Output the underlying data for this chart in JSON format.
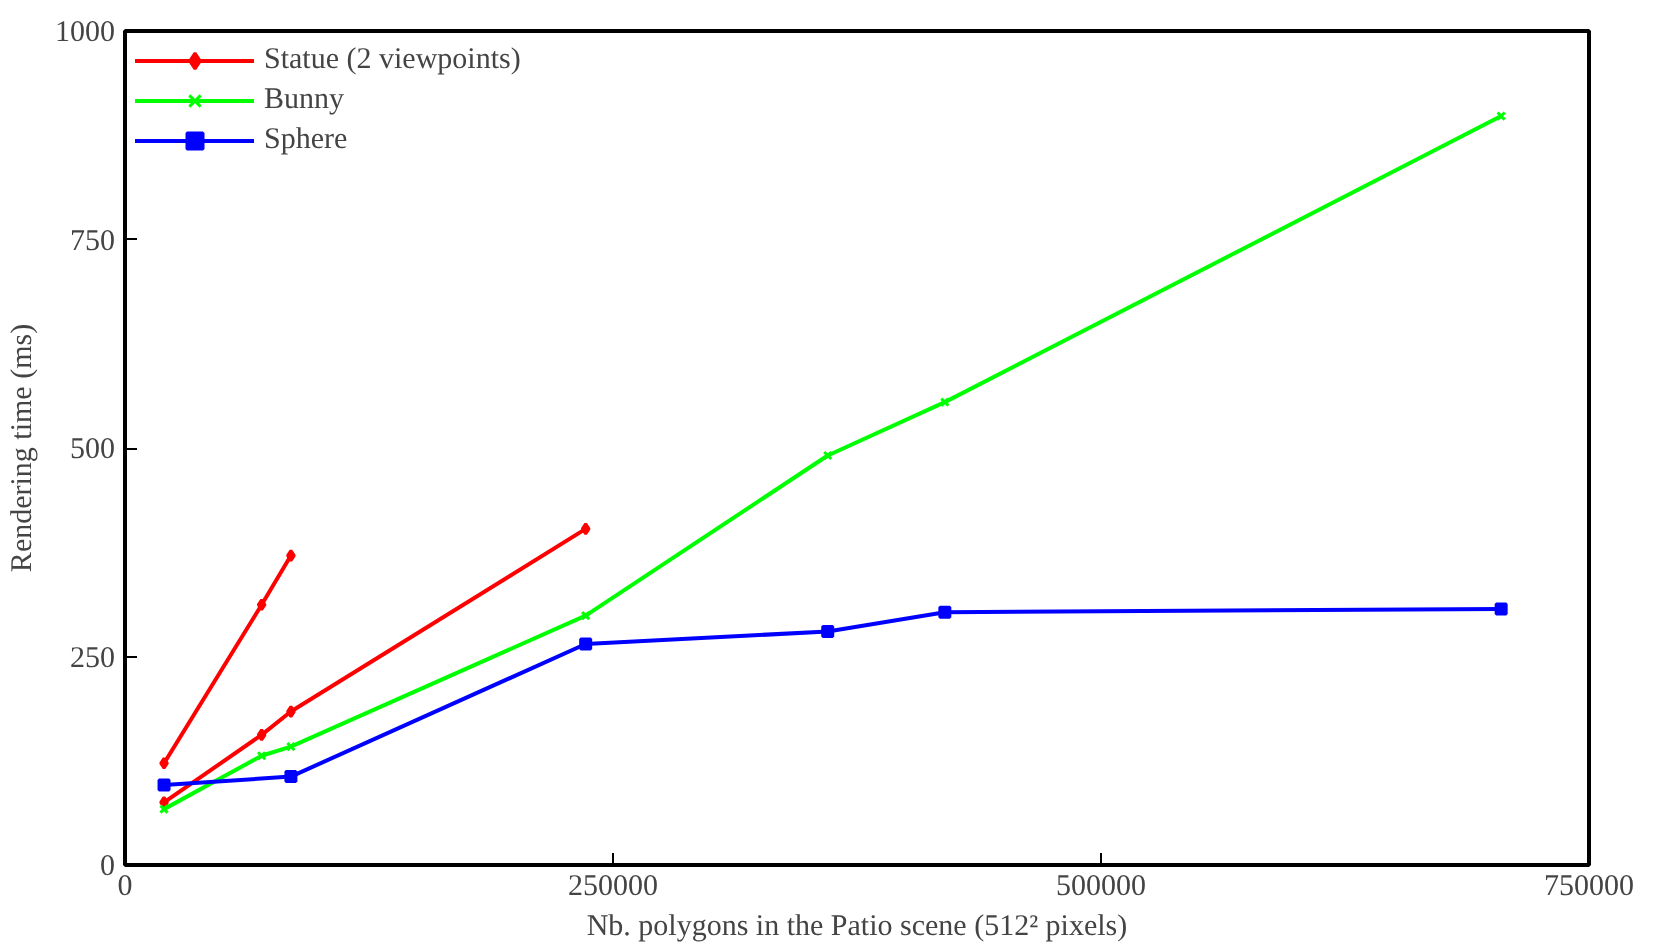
{
  "chart_data": {
    "type": "line",
    "xlabel": "Nb. polygons in the Patio scene (512² pixels)",
    "ylabel": "Rendering time (ms)",
    "xlim": [
      0,
      750000
    ],
    "ylim": [
      0,
      1000
    ],
    "xticks": [
      0,
      250000,
      500000,
      750000
    ],
    "yticks": [
      0,
      250,
      500,
      750,
      1000
    ],
    "grid": false,
    "legend": "top left",
    "series": [
      {
        "name": "Statue (2 viewpoints)",
        "color": "#ff0000",
        "marker": "diamond",
        "x": [
          20000,
          70000,
          85000
        ],
        "values": [
          122,
          312,
          371
        ]
      },
      {
        "color": "#ff0000",
        "marker": "diamond",
        "x": [
          20000,
          70000,
          85000,
          236000
        ],
        "values": [
          75,
          156,
          184,
          403
        ]
      },
      {
        "name": "Bunny",
        "color": "#00ff00",
        "marker": "cross",
        "x": [
          20000,
          70000,
          85000,
          236000,
          360000,
          420000,
          705000
        ],
        "values": [
          67,
          131,
          142,
          299,
          491,
          555,
          898
        ]
      },
      {
        "name": "Sphere",
        "color": "#0000ff",
        "marker": "square",
        "x": [
          20000,
          85000,
          236000,
          360000,
          420000,
          705000
        ],
        "values": [
          96,
          106,
          265,
          280,
          303,
          307
        ]
      }
    ]
  }
}
